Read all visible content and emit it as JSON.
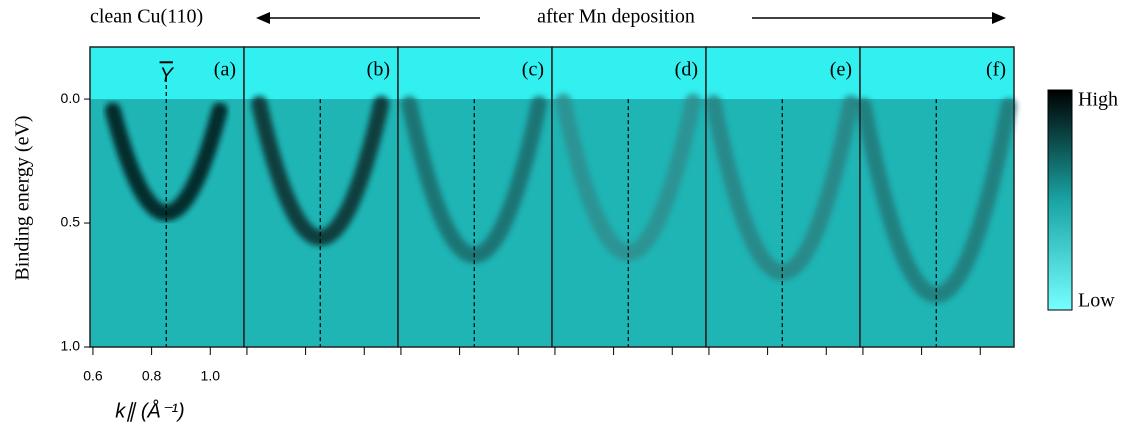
{
  "chart_data": {
    "type": "arpes",
    "header_left": "clean Cu(110)",
    "header_right": "after Mn deposition",
    "ylabel": "Binding energy (eV)",
    "xlabel": "k∥ (Å⁻¹)",
    "ylim": [
      -0.21,
      1.0
    ],
    "yticks": [
      {
        "value": 0,
        "label": "0.0"
      },
      {
        "value": 0.5,
        "label": "0.5"
      },
      {
        "value": 1.0,
        "label": "1.0"
      }
    ],
    "xlim": [
      0.59,
      1.115
    ],
    "xticks": [
      0.6,
      0.8,
      {
        "value": 1.0,
        "label": "1.0"
      }
    ],
    "marker_label": "Y",
    "marker_k": 0.85,
    "panels": [
      {
        "label": "(a)",
        "band_bottom": 0.46,
        "band_color": "#001414"
      },
      {
        "label": "(b)",
        "band_bottom": 0.56,
        "band_color": "#0a2a2a"
      },
      {
        "label": "(c)",
        "band_bottom": 0.63,
        "band_color": "#1f6a6a"
      },
      {
        "label": "(d)",
        "band_bottom": 0.62,
        "band_color": "#2f8e8e"
      },
      {
        "label": "(e)",
        "band_bottom": 0.7,
        "band_color": "#2a8282"
      },
      {
        "label": "(f)",
        "band_bottom": 0.79,
        "band_color": "#247878"
      }
    ],
    "colorbar": {
      "high": "High",
      "low": "Low"
    }
  }
}
